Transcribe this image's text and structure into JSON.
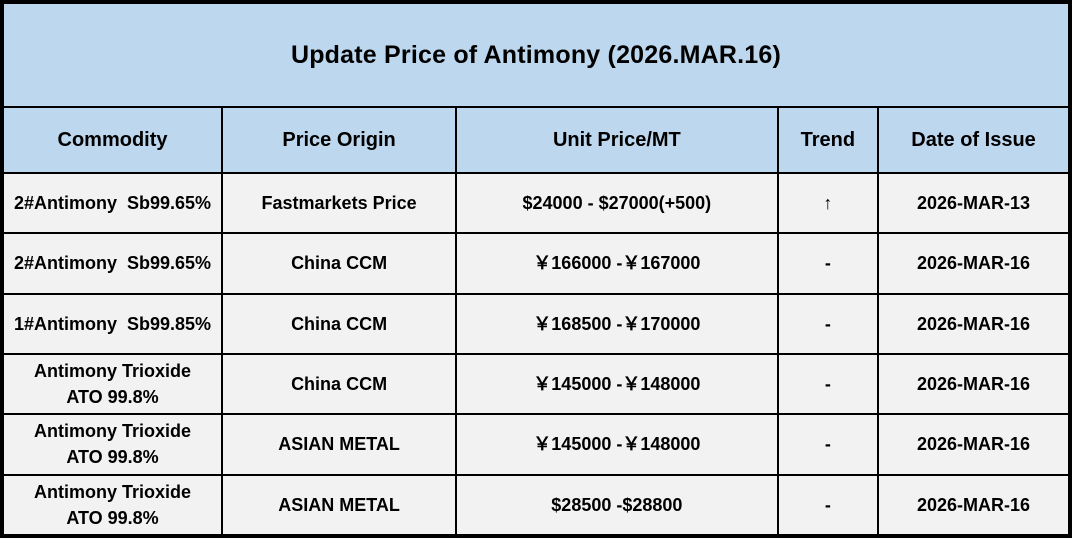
{
  "title": "Update Price of Antimony (2026.MAR.16)",
  "colors": {
    "header_background": "#BDD7EE",
    "row_background": "#F2F2F2",
    "border": "#000000",
    "text": "#000000"
  },
  "table": {
    "columns": [
      "Commodity",
      "Price Origin",
      "Unit Price/MT",
      "Trend",
      "Date of Issue"
    ],
    "rows": [
      {
        "commodity": "2#Antimony  Sb99.65%",
        "origin": "Fastmarkets Price",
        "price": "$24000 - $27000(+500)",
        "trend": "↑",
        "date": "2026-MAR-13"
      },
      {
        "commodity": "2#Antimony  Sb99.65%",
        "origin": "China CCM",
        "price": "￥166000 -￥167000",
        "trend": "-",
        "date": "2026-MAR-16"
      },
      {
        "commodity": "1#Antimony  Sb99.85%",
        "origin": "China CCM",
        "price": "￥168500 -￥170000",
        "trend": "-",
        "date": "2026-MAR-16"
      },
      {
        "commodity": "Antimony Trioxide\nATO 99.8%",
        "origin": "China CCM",
        "price": "￥145000 -￥148000",
        "trend": "-",
        "date": "2026-MAR-16"
      },
      {
        "commodity": "Antimony Trioxide\nATO 99.8%",
        "origin": "ASIAN METAL",
        "price": "￥145000 -￥148000",
        "trend": "-",
        "date": "2026-MAR-16"
      },
      {
        "commodity": "Antimony Trioxide\nATO 99.8%",
        "origin": "ASIAN METAL",
        "price": "$28500 -$28800",
        "trend": "-",
        "date": "2026-MAR-16"
      }
    ]
  }
}
